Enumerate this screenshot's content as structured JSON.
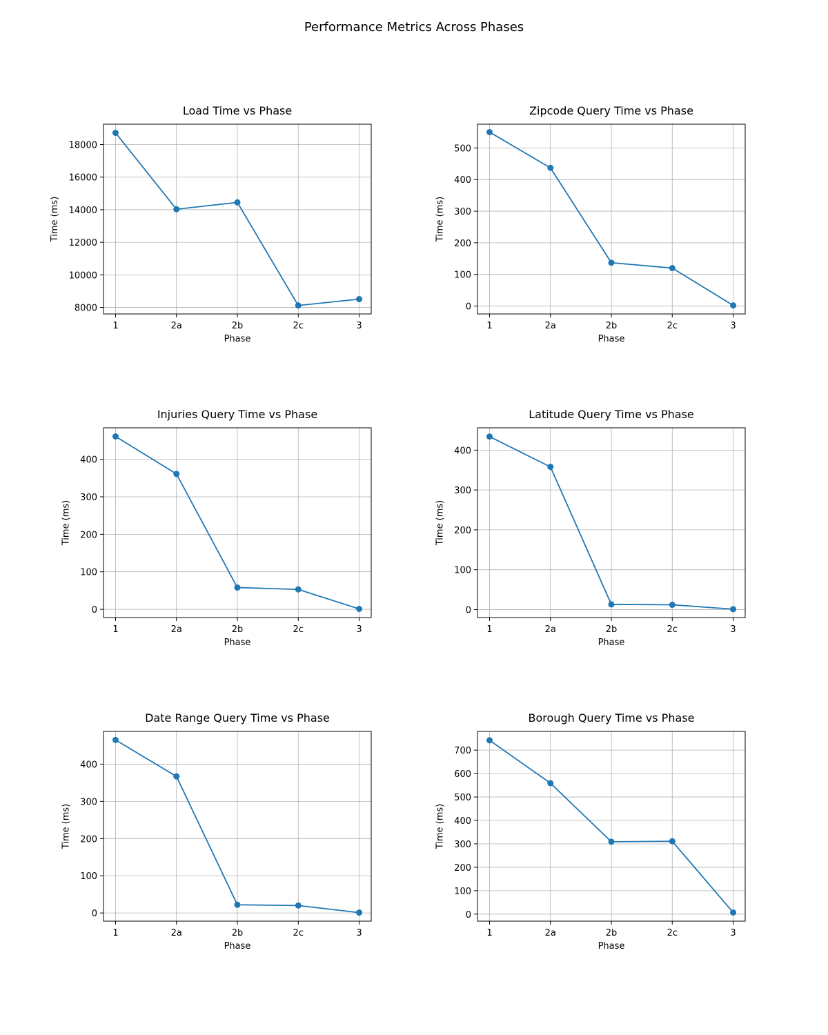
{
  "figure": {
    "title": "Performance Metrics Across Phases"
  },
  "colors": {
    "series": "#1f77b4",
    "grid": "#b0b0b0"
  },
  "chart_data": [
    {
      "type": "line",
      "title": "Load Time vs Phase",
      "xlabel": "Phase",
      "ylabel": "Time (ms)",
      "categories": [
        "1",
        "2a",
        "2b",
        "2c",
        "3"
      ],
      "values": [
        18720,
        14030,
        14450,
        8120,
        8510
      ],
      "yticks": [
        8000,
        10000,
        12000,
        14000,
        16000,
        18000
      ],
      "ylim": [
        7600,
        19250
      ],
      "grid": true,
      "marker": "circle"
    },
    {
      "type": "line",
      "title": "Zipcode Query Time vs Phase",
      "xlabel": "Phase",
      "ylabel": "Time (ms)",
      "categories": [
        "1",
        "2a",
        "2b",
        "2c",
        "3"
      ],
      "values": [
        550,
        437,
        137,
        120,
        2
      ],
      "yticks": [
        0,
        100,
        200,
        300,
        400,
        500
      ],
      "ylim": [
        -25,
        575
      ],
      "grid": true,
      "marker": "circle"
    },
    {
      "type": "line",
      "title": "Injuries Query Time vs Phase",
      "xlabel": "Phase",
      "ylabel": "Time (ms)",
      "categories": [
        "1",
        "2a",
        "2b",
        "2c",
        "3"
      ],
      "values": [
        461,
        361,
        58,
        53,
        1
      ],
      "yticks": [
        0,
        100,
        200,
        300,
        400
      ],
      "ylim": [
        -22,
        484
      ],
      "grid": true,
      "marker": "circle"
    },
    {
      "type": "line",
      "title": "Latitude Query Time vs Phase",
      "xlabel": "Phase",
      "ylabel": "Time (ms)",
      "categories": [
        "1",
        "2a",
        "2b",
        "2c",
        "3"
      ],
      "values": [
        434,
        358,
        13,
        12,
        1
      ],
      "yticks": [
        0,
        100,
        200,
        300,
        400
      ],
      "ylim": [
        -20,
        456
      ],
      "grid": true,
      "marker": "circle"
    },
    {
      "type": "line",
      "title": "Date Range Query Time vs Phase",
      "xlabel": "Phase",
      "ylabel": "Time (ms)",
      "categories": [
        "1",
        "2a",
        "2b",
        "2c",
        "3"
      ],
      "values": [
        465,
        367,
        22,
        20,
        1
      ],
      "yticks": [
        0,
        100,
        200,
        300,
        400
      ],
      "ylim": [
        -22,
        488
      ],
      "grid": true,
      "marker": "circle"
    },
    {
      "type": "line",
      "title": "Borough Query Time vs Phase",
      "xlabel": "Phase",
      "ylabel": "Time (ms)",
      "categories": [
        "1",
        "2a",
        "2b",
        "2c",
        "3"
      ],
      "values": [
        742,
        559,
        309,
        311,
        7
      ],
      "yticks": [
        0,
        100,
        200,
        300,
        400,
        500,
        600,
        700
      ],
      "ylim": [
        -30,
        780
      ],
      "grid": true,
      "marker": "circle"
    }
  ]
}
